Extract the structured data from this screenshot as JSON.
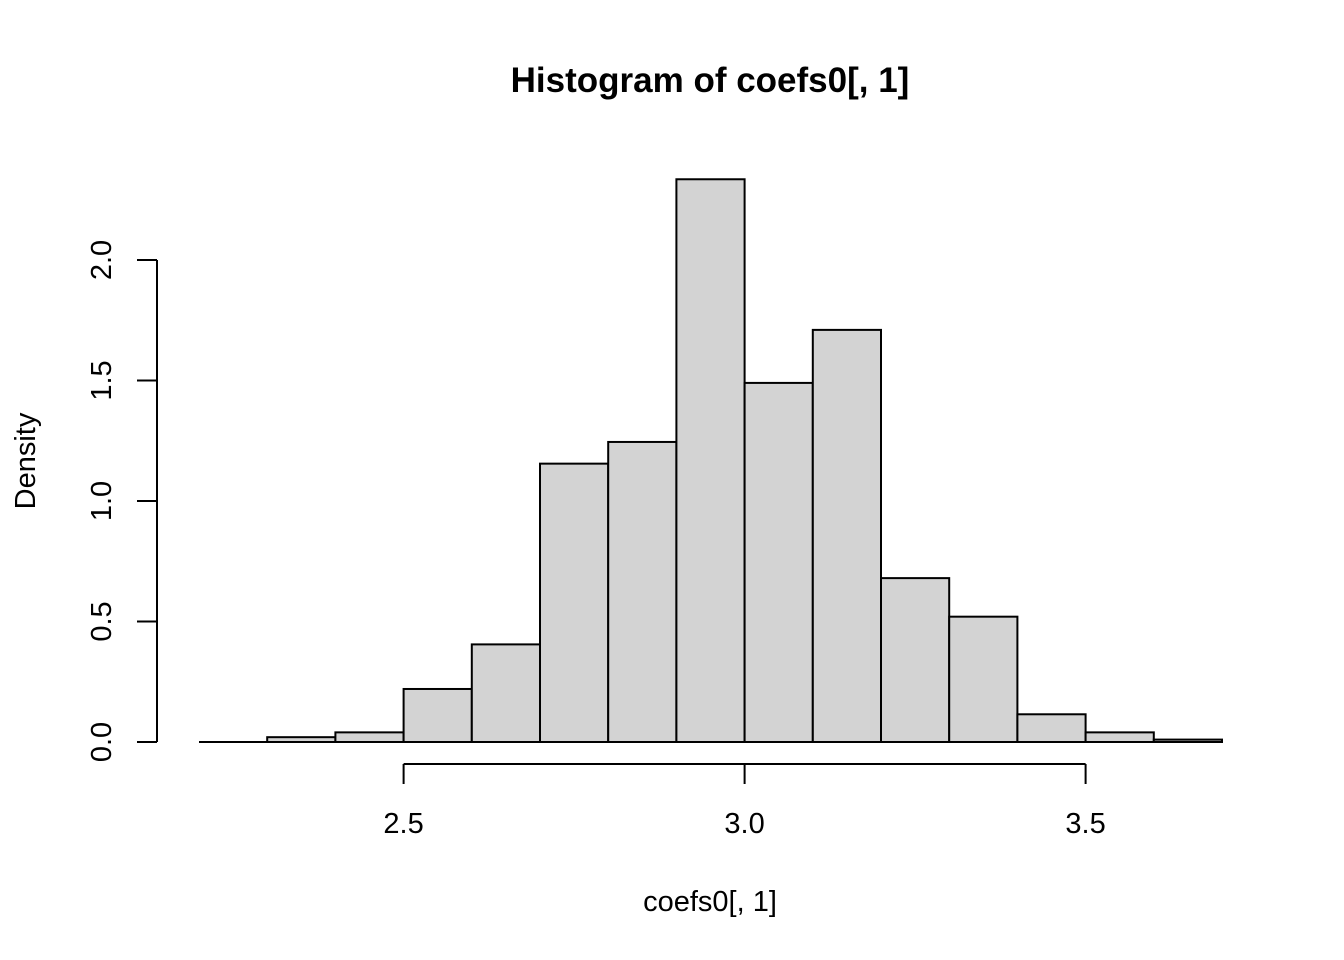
{
  "chart_data": {
    "type": "bar",
    "title": "Histogram of coefs0[, 1]",
    "xlabel": "coefs0[, 1]",
    "ylabel": "Density",
    "bins": [
      {
        "from": 2.2,
        "to": 2.3,
        "density": 0.0
      },
      {
        "from": 2.3,
        "to": 2.4,
        "density": 0.02
      },
      {
        "from": 2.4,
        "to": 2.5,
        "density": 0.04
      },
      {
        "from": 2.5,
        "to": 2.6,
        "density": 0.22
      },
      {
        "from": 2.6,
        "to": 2.7,
        "density": 0.405
      },
      {
        "from": 2.7,
        "to": 2.8,
        "density": 1.155
      },
      {
        "from": 2.8,
        "to": 2.9,
        "density": 1.245
      },
      {
        "from": 2.9,
        "to": 3.0,
        "density": 2.335
      },
      {
        "from": 3.0,
        "to": 3.1,
        "density": 1.49
      },
      {
        "from": 3.1,
        "to": 3.2,
        "density": 1.71
      },
      {
        "from": 3.2,
        "to": 3.3,
        "density": 0.68
      },
      {
        "from": 3.3,
        "to": 3.4,
        "density": 0.52
      },
      {
        "from": 3.4,
        "to": 3.5,
        "density": 0.115
      },
      {
        "from": 3.5,
        "to": 3.6,
        "density": 0.04
      },
      {
        "from": 3.6,
        "to": 3.7,
        "density": 0.01
      }
    ],
    "xlim": [
      2.2,
      3.7
    ],
    "ylim": [
      0,
      2.4
    ],
    "x_ticks": [
      2.5,
      3.0,
      3.5
    ],
    "x_tick_labels": [
      "2.5",
      "3.0",
      "3.5"
    ],
    "y_ticks": [
      0.0,
      0.5,
      1.0,
      1.5,
      2.0
    ],
    "y_tick_labels": [
      "0.0",
      "0.5",
      "1.0",
      "1.5",
      "2.0"
    ],
    "bar_fill": "#d3d3d3",
    "bar_stroke": "#000000",
    "grid": false
  }
}
